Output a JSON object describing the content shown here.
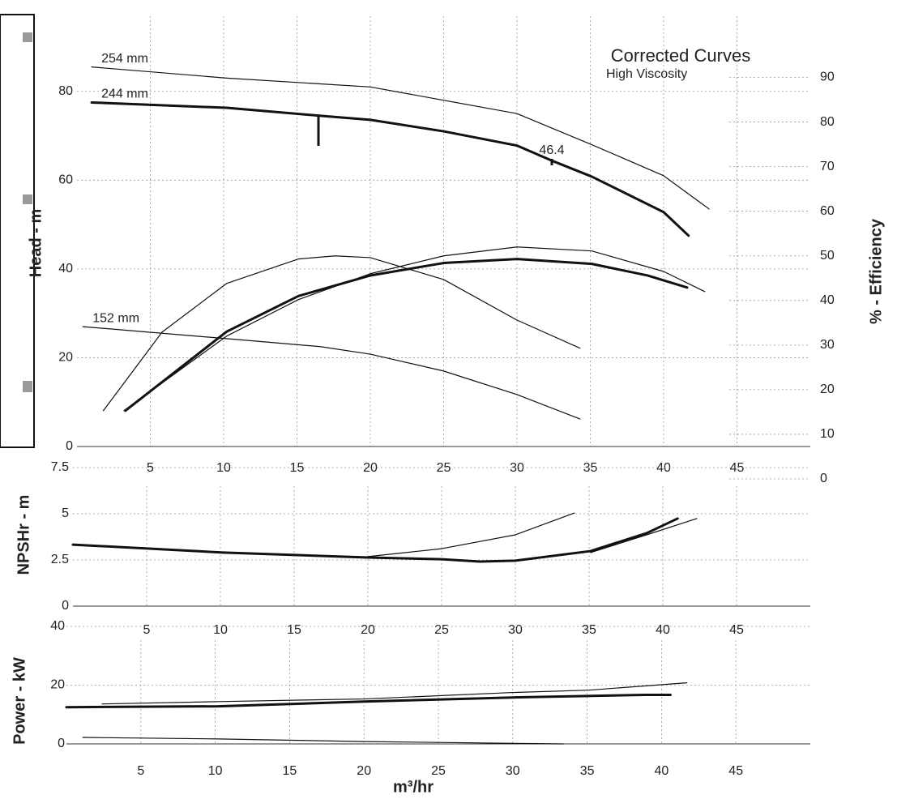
{
  "chart_data": [
    {
      "type": "line",
      "title": "Corrected Curves",
      "subtitle": "High Viscosity",
      "ylabel": "Head - m",
      "y2label": "% - Efficiency",
      "xlim": [
        0,
        50
      ],
      "xticks": [
        5,
        10,
        15,
        20,
        25,
        30,
        35,
        40,
        45
      ],
      "ylim": [
        0,
        90
      ],
      "yticks": [
        0,
        20,
        40,
        60,
        80
      ],
      "y2lim": [
        0,
        95
      ],
      "y2ticks": [
        0,
        10,
        20,
        30,
        40,
        50,
        60,
        70,
        80,
        90
      ],
      "grid": true,
      "annotations": [
        "46.4"
      ],
      "series": [
        {
          "name": "254 mm",
          "color": "#111111",
          "width": 1.2,
          "x": [
            1,
            10.2,
            20,
            30,
            35.1,
            40,
            43.1
          ],
          "values": [
            85.5,
            83,
            81,
            75,
            68,
            61,
            53.5
          ]
        },
        {
          "name": "244 mm",
          "color": "#111111",
          "width": 3,
          "x": [
            1,
            10.2,
            16.6,
            20,
            25,
            30,
            32.3,
            35.1,
            40,
            41.7
          ],
          "values": [
            77.5,
            76.3,
            74.5,
            73.6,
            71,
            67.8,
            64.5,
            60.8,
            52.8,
            47.5
          ]
        },
        {
          "name": "152 mm",
          "color": "#111111",
          "width": 1.2,
          "x": [
            0.4,
            10.2,
            16.6,
            20,
            25,
            30,
            34.3
          ],
          "values": [
            27,
            24.3,
            22.5,
            20.8,
            17,
            11.7,
            6.2
          ]
        },
        {
          "axis": "y2",
          "color": "#111111",
          "width": 1.2,
          "x": [
            1.8,
            5.8,
            10.2,
            15.1,
            17.6,
            20,
            25,
            30,
            34.3
          ],
          "values": [
            15.3,
            32.9,
            43.8,
            49.3,
            50,
            49.6,
            44.7,
            35.6,
            29.3
          ]
        },
        {
          "axis": "y2",
          "color": "#111111",
          "width": 1.2,
          "x": [
            3.2,
            10.2,
            15.1,
            20,
            25,
            30,
            35.1,
            40,
            42.8
          ],
          "values": [
            15.3,
            32,
            40.2,
            46,
            50,
            52,
            51.1,
            46.5,
            42
          ]
        },
        {
          "axis": "y2",
          "color": "#111111",
          "width": 3,
          "x": [
            3.3,
            10.2,
            15.1,
            20,
            25,
            30,
            35.1,
            38.9,
            41.6
          ],
          "values": [
            15.3,
            33,
            41,
            45.6,
            48.4,
            49.3,
            48.2,
            45.6,
            42.9
          ]
        }
      ]
    },
    {
      "type": "line",
      "ylabel": "NPSHr - m",
      "xlim": [
        0,
        50
      ],
      "xticks": [
        5,
        10,
        15,
        20,
        25,
        30,
        35,
        40,
        45
      ],
      "ylim": [
        0,
        7.5
      ],
      "yticks": [
        0,
        2.5,
        5,
        7.5
      ],
      "grid": true,
      "series": [
        {
          "color": "#111111",
          "width": 3,
          "x": [
            0,
            10.2,
            20,
            25,
            27.6,
            30,
            35.1,
            38.9,
            41
          ],
          "values": [
            3.33,
            2.9,
            2.63,
            2.54,
            2.41,
            2.46,
            2.98,
            3.95,
            4.74
          ]
        },
        {
          "color": "#111111",
          "width": 1.2,
          "x": [
            20,
            25,
            30,
            34
          ],
          "values": [
            2.68,
            3.11,
            3.86,
            5.04
          ]
        },
        {
          "color": "#111111",
          "width": 1.2,
          "x": [
            35.1,
            38.9,
            42.3
          ],
          "values": [
            2.9,
            3.86,
            4.74
          ]
        }
      ]
    },
    {
      "type": "line",
      "ylabel": "Power - kW",
      "xlabel": "m³/hr",
      "xlim": [
        0,
        50
      ],
      "xticks": [
        5,
        10,
        15,
        20,
        25,
        30,
        35,
        40,
        45
      ],
      "ylim": [
        0,
        40
      ],
      "yticks": [
        0,
        20,
        40
      ],
      "grid": true,
      "series": [
        {
          "color": "#111111",
          "width": 3,
          "x": [
            0,
            10.2,
            20,
            30,
            38.9,
            40.6
          ],
          "values": [
            12.5,
            12.8,
            14.4,
            15.8,
            16.7,
            16.7
          ]
        },
        {
          "color": "#111111",
          "width": 1.2,
          "x": [
            2.4,
            10.2,
            20,
            30,
            35.1,
            41.7
          ],
          "values": [
            13.6,
            14.4,
            15.3,
            17.5,
            18.3,
            20.8
          ]
        },
        {
          "color": "#111111",
          "width": 1.2,
          "x": [
            1.1,
            10.2,
            20,
            33.4
          ],
          "values": [
            2.2,
            1.7,
            0.8,
            0
          ]
        }
      ]
    }
  ]
}
